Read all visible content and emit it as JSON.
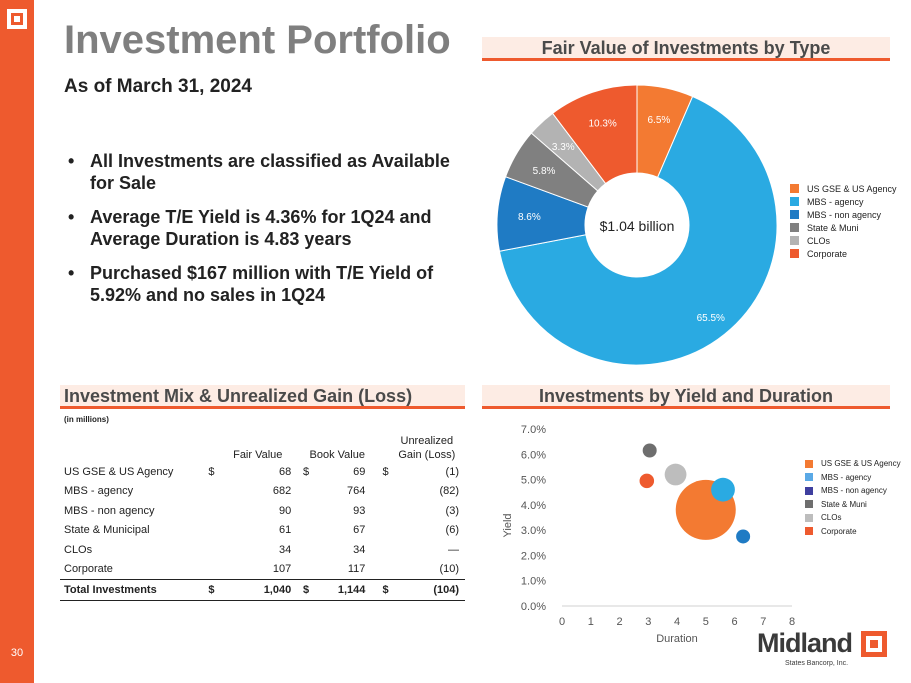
{
  "page": {
    "title": "Investment Portfolio",
    "subtitle": "As of March 31, 2024",
    "page_number": "30"
  },
  "bullets": [
    "All Investments are classified as Available for Sale",
    "Average T/E Yield is 4.36% for 1Q24 and Average Duration is 4.83 years",
    "Purchased $167 million with T/E Yield of 5.92% and no sales in 1Q24"
  ],
  "sections": {
    "pie_title": "Fair Value of Investments by Type",
    "mix_title": "Investment Mix & Unrealized Gain (Loss)",
    "yield_title": "Investments by Yield and Duration"
  },
  "colors": {
    "accent": "#ee5a2e",
    "us_gse": "#f37a32",
    "mbs_agency": "#2aaae2",
    "mbs_non_agency": "#1f7bc4",
    "state_muni": "#808080",
    "clos": "#b3b3b3",
    "corporate": "#ee5a2e"
  },
  "legend_pie": [
    {
      "label": "US GSE & US Agency",
      "color": "#f37a32"
    },
    {
      "label": "MBS - agency",
      "color": "#2aaae2"
    },
    {
      "label": "MBS - non agency",
      "color": "#1f7bc4"
    },
    {
      "label": "State & Muni",
      "color": "#808080"
    },
    {
      "label": "CLOs",
      "color": "#b3b3b3"
    },
    {
      "label": "Corporate",
      "color": "#ee5a2e"
    }
  ],
  "legend_bubble": [
    {
      "label": "US GSE & US Agency",
      "color": "#f37a32"
    },
    {
      "label": "MBS - agency",
      "color": "#5aa9e6"
    },
    {
      "label": "MBS - non agency",
      "color": "#3f3f9f"
    },
    {
      "label": "State & Muni",
      "color": "#6e6e6e"
    },
    {
      "label": "CLOs",
      "color": "#bdbdbd"
    },
    {
      "label": "Corporate",
      "color": "#ee5a2e"
    }
  ],
  "table": {
    "units": "(in millions)",
    "headers": {
      "fair_value": "Fair Value",
      "book_value": "Book Value",
      "gain_line1": "Unrealized",
      "gain_line2": "Gain (Loss)"
    },
    "rows": [
      {
        "name": "US GSE & US Agency",
        "d1": "$",
        "fair": "68",
        "d2": "$",
        "book": "69",
        "d3": "$",
        "gain": "(1)"
      },
      {
        "name": "MBS - agency",
        "d1": "",
        "fair": "682",
        "d2": "",
        "book": "764",
        "d3": "",
        "gain": "(82)"
      },
      {
        "name": "MBS - non agency",
        "d1": "",
        "fair": "90",
        "d2": "",
        "book": "93",
        "d3": "",
        "gain": "(3)"
      },
      {
        "name": "State & Municipal",
        "d1": "",
        "fair": "61",
        "d2": "",
        "book": "67",
        "d3": "",
        "gain": "(6)"
      },
      {
        "name": "CLOs",
        "d1": "",
        "fair": "34",
        "d2": "",
        "book": "34",
        "d3": "",
        "gain": "—"
      },
      {
        "name": "Corporate",
        "d1": "",
        "fair": "107",
        "d2": "",
        "book": "117",
        "d3": "",
        "gain": "(10)"
      }
    ],
    "total": {
      "name": "Total Investments",
      "d1": "$",
      "fair": "1,040",
      "d2": "$",
      "book": "1,144",
      "d3": "$",
      "gain": "(104)"
    }
  },
  "brand": {
    "name": "Midland",
    "sub": "States Bancorp, Inc."
  },
  "chart_data": [
    {
      "type": "pie",
      "title": "Fair Value of Investments by Type",
      "center_label": "$1.04 billion",
      "slices": [
        {
          "label": "US GSE & US Agency",
          "value": 6.5,
          "display": "6.5%",
          "color": "#f37a32"
        },
        {
          "label": "MBS - agency",
          "value": 65.5,
          "display": "65.5%",
          "color": "#2aaae2"
        },
        {
          "label": "MBS - non agency",
          "value": 8.6,
          "display": "8.6%",
          "color": "#1f7bc4"
        },
        {
          "label": "State & Muni",
          "value": 5.8,
          "display": "5.8%",
          "color": "#808080"
        },
        {
          "label": "CLOs",
          "value": 3.3,
          "display": "3.3%",
          "color": "#b3b3b3"
        },
        {
          "label": "Corporate",
          "value": 10.3,
          "display": "10.3%",
          "color": "#ee5a2e"
        }
      ]
    },
    {
      "type": "scatter",
      "title": "Investments by Yield and Duration",
      "xlabel": "Duration",
      "ylabel": "Yield",
      "xlim": [
        0,
        8
      ],
      "ylim": [
        0,
        7
      ],
      "x_ticks": [
        "0",
        "1",
        "2",
        "3",
        "4",
        "5",
        "6",
        "7",
        "8"
      ],
      "y_ticks": [
        "0.0%",
        "1.0%",
        "2.0%",
        "3.0%",
        "4.0%",
        "5.0%",
        "6.0%",
        "7.0%"
      ],
      "series": [
        {
          "name": "US GSE & US Agency",
          "x": 5.0,
          "y": 3.8,
          "size": 682,
          "color": "#f37a32"
        },
        {
          "name": "MBS - agency",
          "x": 5.6,
          "y": 4.6,
          "size": 107,
          "color": "#2aaae2"
        },
        {
          "name": "MBS - non agency",
          "x": 6.3,
          "y": 2.75,
          "size": 34,
          "color": "#1f7bc4"
        },
        {
          "name": "State & Muni",
          "x": 3.05,
          "y": 6.15,
          "size": 20,
          "color": "#6e6e6e"
        },
        {
          "name": "CLOs",
          "x": 3.95,
          "y": 5.2,
          "size": 90,
          "color": "#bdbdbd"
        },
        {
          "name": "Corporate",
          "x": 2.95,
          "y": 4.95,
          "size": 40,
          "color": "#ee5a2e"
        }
      ]
    }
  ]
}
